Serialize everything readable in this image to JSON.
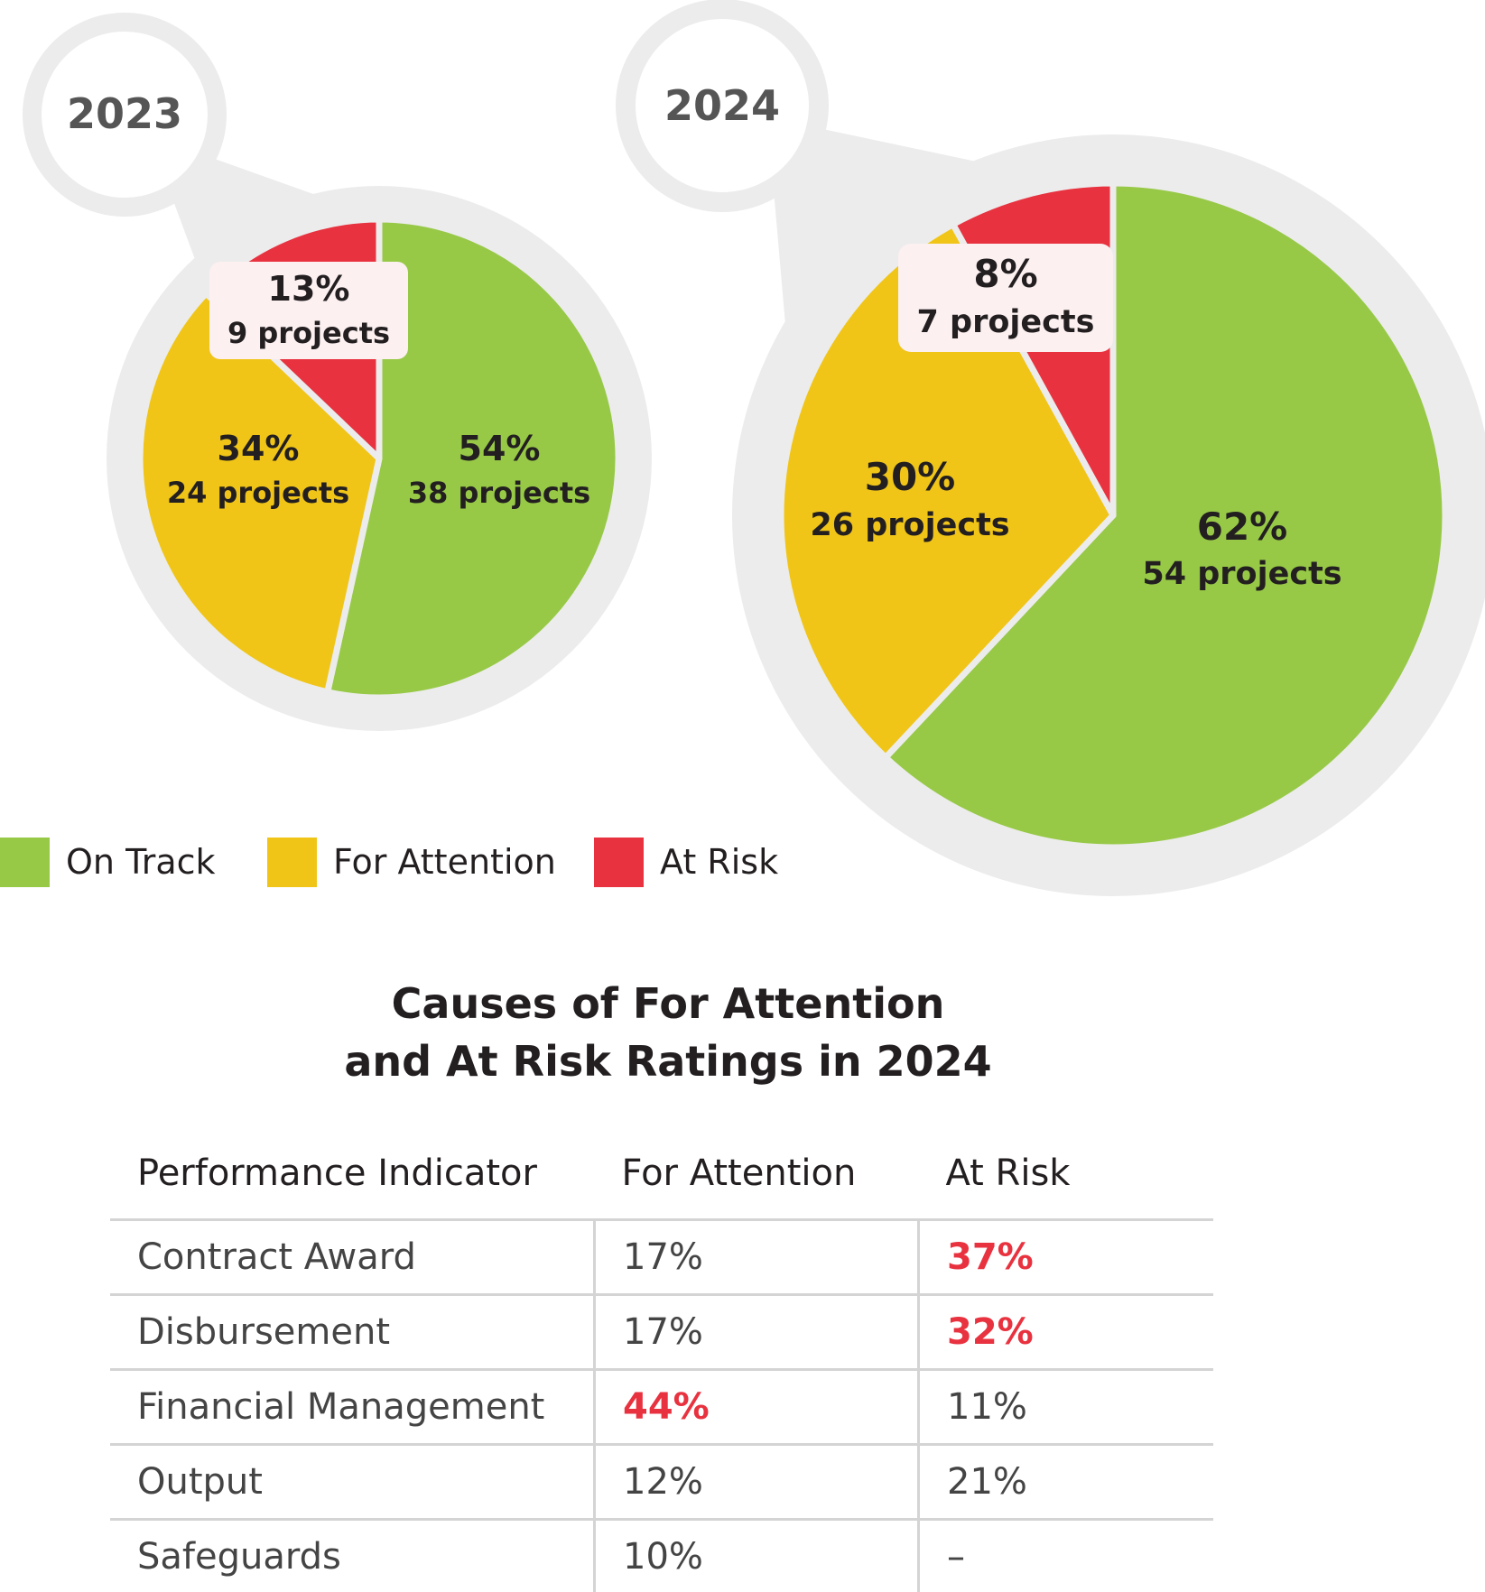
{
  "colors": {
    "on_track": "#97c947",
    "for_attention": "#f0c518",
    "at_risk": "#e8323f",
    "halo": "#ececec",
    "label_box": "#fcf0f1",
    "text": "#231f20",
    "highlight": "#e8323f"
  },
  "legend": [
    {
      "label": "On Track",
      "color": "#97c947"
    },
    {
      "label": "For Attention",
      "color": "#f0c518"
    },
    {
      "label": "At Risk",
      "color": "#e8323f"
    }
  ],
  "chart_data": [
    {
      "type": "pie",
      "title": "2023",
      "slices": [
        {
          "name": "On Track",
          "percent_label": "54%",
          "projects_label": "38 projects",
          "value": 54,
          "color": "#97c947"
        },
        {
          "name": "For Attention",
          "percent_label": "34%",
          "projects_label": "24 projects",
          "value": 34,
          "color": "#f0c518"
        },
        {
          "name": "At Risk",
          "percent_label": "13%",
          "projects_label": "9 projects",
          "value": 13,
          "color": "#e8323f"
        }
      ]
    },
    {
      "type": "pie",
      "title": "2024",
      "slices": [
        {
          "name": "On Track",
          "percent_label": "62%",
          "projects_label": "54 projects",
          "value": 62,
          "color": "#97c947"
        },
        {
          "name": "For Attention",
          "percent_label": "30%",
          "projects_label": "26 projects",
          "value": 30,
          "color": "#f0c518"
        },
        {
          "name": "At Risk",
          "percent_label": "8%",
          "projects_label": "7 projects",
          "value": 8,
          "color": "#e8323f"
        }
      ]
    }
  ],
  "table": {
    "title_line1": "Causes of For Attention",
    "title_line2": "and At Risk Ratings in 2024",
    "headers": [
      "Performance Indicator",
      "For Attention",
      "At Risk"
    ],
    "rows": [
      {
        "indicator": "Contract Award",
        "for_attention": "17%",
        "at_risk": "37%",
        "highlight": "at_risk"
      },
      {
        "indicator": "Disbursement",
        "for_attention": "17%",
        "at_risk": "32%",
        "highlight": "at_risk"
      },
      {
        "indicator": "Financial Management",
        "for_attention": "44%",
        "at_risk": "11%",
        "highlight": "for_attention"
      },
      {
        "indicator": "Output",
        "for_attention": "12%",
        "at_risk": "21%",
        "highlight": ""
      },
      {
        "indicator": "Safeguards",
        "for_attention": "10%",
        "at_risk": "–",
        "highlight": ""
      }
    ]
  }
}
